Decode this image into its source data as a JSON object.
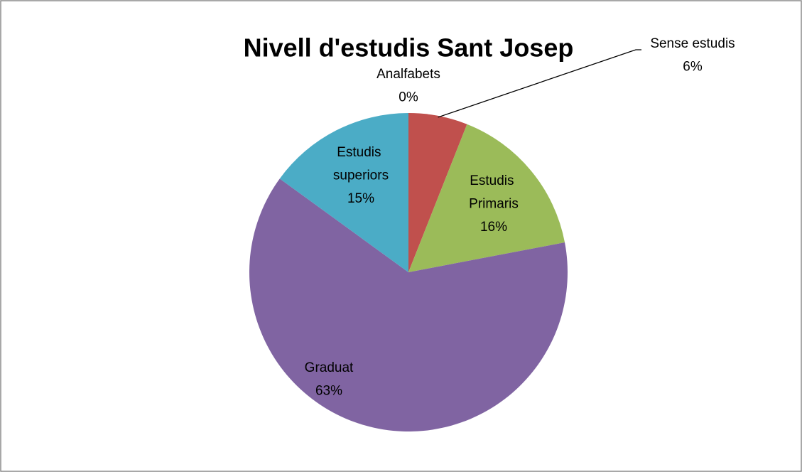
{
  "chart_data": {
    "type": "pie",
    "title": "Nivell d'estudis Sant Josep",
    "categories": [
      "Analfabets",
      "Sense estudis",
      "Estudis Primaris",
      "Graduat",
      "Estudis superiors"
    ],
    "values": [
      0,
      6,
      16,
      63,
      15
    ],
    "value_labels": [
      "0%",
      "6%",
      "16%",
      "63%",
      "15%"
    ],
    "colors": [
      "#4f81bd",
      "#c0504d",
      "#9bbb59",
      "#8064a2",
      "#4bacc6"
    ]
  }
}
